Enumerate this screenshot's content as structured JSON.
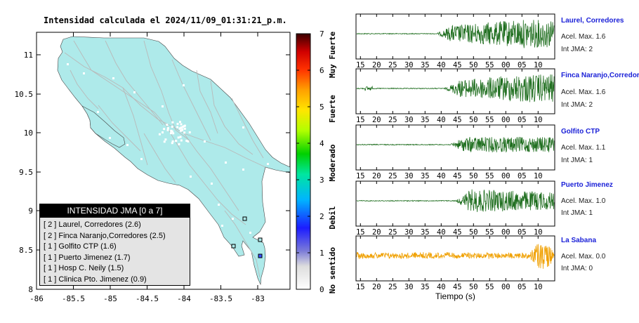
{
  "map": {
    "title": "Intensidad calculada el 2024/11/09_01:31:21_p.m.",
    "x_ticks": [
      "-86",
      "-85.5",
      "-85",
      "-84.5",
      "-84",
      "-83.5",
      "-83"
    ],
    "y_ticks": [
      "11",
      "10.5",
      "10",
      "9.5",
      "9",
      "8.5",
      "8"
    ],
    "land_color": "#aeeaea",
    "road_color": "#b9b9b9"
  },
  "colorbar": {
    "ticks": [
      "0",
      "1",
      "2",
      "3",
      "4",
      "5",
      "6",
      "7"
    ],
    "labels": [
      "No sentido",
      "Debil",
      "Moderado",
      "Fuerte",
      "Muy Fuerte"
    ]
  },
  "legend": {
    "title": "INTENSIDAD JMA [0 a 7]",
    "rows": [
      "[ 2 ]  Laurel, Corredores (2.6)",
      "[ 2 ]  Finca Naranjo,Corredores (2.5)",
      "[ 1 ]  Golfito CTP (1.6)",
      "[ 1 ]  Puerto Jimenez (1.7)",
      "[ 1 ]  Hosp C. Neily (1.5)",
      "[ 1 ]  Clinica Pto. Jimenez (0.9)"
    ]
  },
  "seismograms": {
    "x_ticks": [
      "15",
      "20",
      "25",
      "30",
      "35",
      "40",
      "45",
      "50",
      "55",
      "00",
      "05",
      "10"
    ],
    "xlabel": "Tiempo (s)",
    "stations": [
      {
        "name": "Laurel, Corredores",
        "acel": "Acel. Max. 1.6",
        "jma": "Int JMA: 2",
        "color": "#1f6e1f",
        "onset": 0.4
      },
      {
        "name": "Finca Naranjo,Corredores",
        "acel": "Acel. Max. 1.6",
        "jma": "Int JMA: 2",
        "color": "#1f6e1f",
        "onset": 0.44
      },
      {
        "name": "Golfito CTP",
        "acel": "Acel. Max. 1.1",
        "jma": "Int JMA: 1",
        "color": "#1f6e1f",
        "onset": 0.47
      },
      {
        "name": "Puerto Jimenez",
        "acel": "Acel. Max. 1.0",
        "jma": "Int JMA: 1",
        "color": "#1f6e1f",
        "onset": 0.5
      },
      {
        "name": "La Sabana",
        "acel": "Acel. Max. 0.0",
        "jma": "Int JMA: 0",
        "color": "#f0a000",
        "onset": 0.0
      }
    ]
  },
  "chart_data": {
    "type": "scatter",
    "title": "Intensidad calculada el 2024/11/09_01:31:21_p.m.",
    "xlim": [
      -86,
      -82.6
    ],
    "ylim": [
      8,
      11.3
    ],
    "points": [
      {
        "label": "Laurel, Corredores",
        "lon": -82.93,
        "lat": 8.53,
        "jma": 2
      },
      {
        "label": "Finca Naranjo,Corredores",
        "lon": -82.98,
        "lat": 8.63,
        "jma": 2
      },
      {
        "label": "Golfito CTP",
        "lon": -83.17,
        "lat": 8.63,
        "jma": 1
      },
      {
        "label": "Puerto Jimenez",
        "lon": -83.3,
        "lat": 8.53,
        "jma": 1
      }
    ]
  }
}
